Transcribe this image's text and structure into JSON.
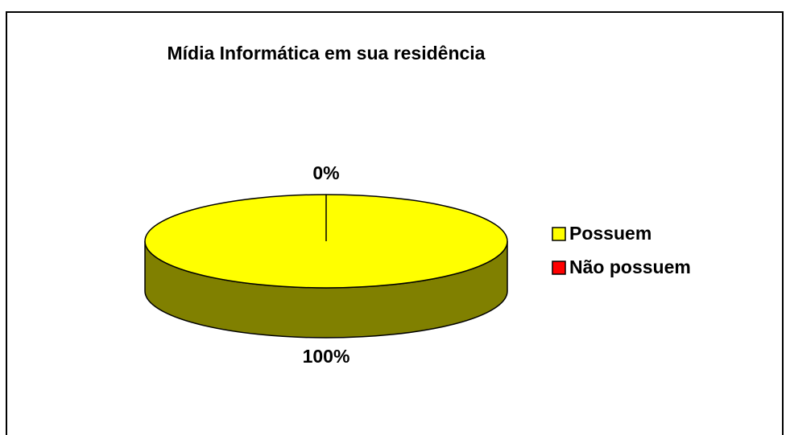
{
  "chart_data": {
    "type": "pie",
    "title": "Mídia Informática em sua residência",
    "categories": [
      "Possuem",
      "Não possuem"
    ],
    "values": [
      100,
      0
    ],
    "value_labels": [
      "100%",
      "0%"
    ],
    "colors": [
      "#ffff00",
      "#ff0000"
    ],
    "legend": "right"
  }
}
